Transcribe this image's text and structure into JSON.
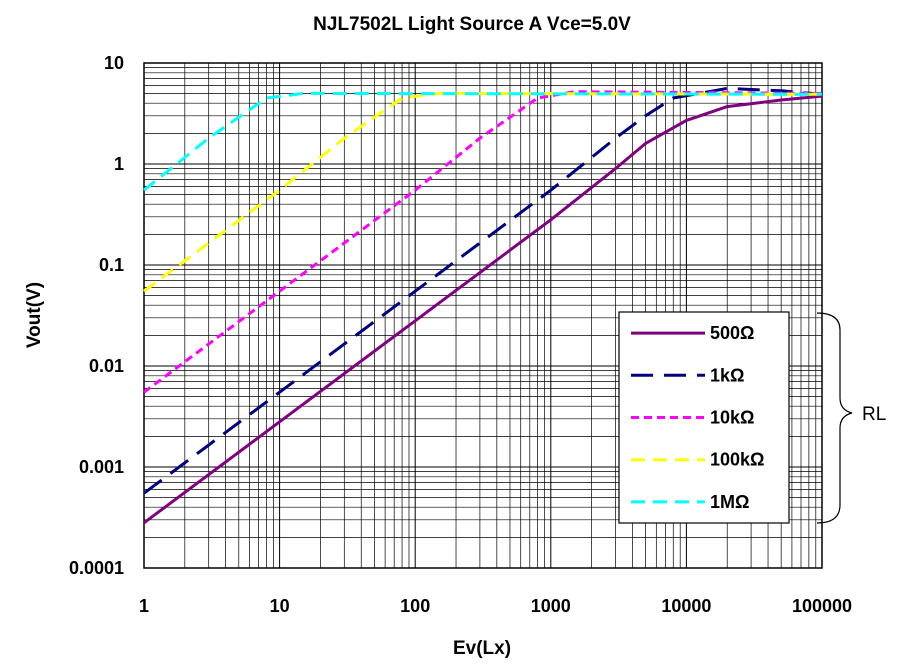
{
  "chart_data": {
    "type": "line",
    "title": "NJL7502L Light Source A Vce=5.0V",
    "xlabel": "Ev(Lx)",
    "ylabel": "Vout(V)",
    "x_scale": "log",
    "y_scale": "log",
    "xlim": [
      1,
      100000
    ],
    "ylim": [
      0.0001,
      10
    ],
    "x_ticks": [
      "1",
      "10",
      "100",
      "1000",
      "10000",
      "100000"
    ],
    "y_ticks": [
      "10",
      "1",
      "0.1",
      "0.01",
      "0.001",
      "0.0001"
    ],
    "grid": true,
    "legend_position": "bottom-right",
    "legend_group_label": "RL",
    "series": [
      {
        "name": "500Ω",
        "color": "#800080",
        "dash": "solid",
        "x": [
          1,
          10,
          100,
          1000,
          3000,
          5000,
          10000,
          20000,
          50000,
          100000
        ],
        "y": [
          0.00028,
          0.0028,
          0.028,
          0.28,
          0.9,
          1.6,
          2.7,
          3.7,
          4.3,
          4.7
        ]
      },
      {
        "name": "1kΩ",
        "color": "#000080",
        "dash": "long",
        "x": [
          1,
          10,
          100,
          1000,
          3000,
          5000,
          8000,
          20000,
          50000,
          100000
        ],
        "y": [
          0.00055,
          0.0055,
          0.055,
          0.55,
          1.8,
          3.0,
          4.5,
          5.6,
          5.3,
          4.9
        ]
      },
      {
        "name": "10kΩ",
        "color": "#ff00ff",
        "dash": "short",
        "x": [
          1,
          10,
          100,
          300,
          800,
          1500,
          100000
        ],
        "y": [
          0.0055,
          0.055,
          0.55,
          1.8,
          4.5,
          5.2,
          5.0
        ]
      },
      {
        "name": "100kΩ",
        "color": "#ffff00",
        "dash": "medium",
        "x": [
          1,
          10,
          30,
          80,
          150,
          100000
        ],
        "y": [
          0.055,
          0.55,
          1.8,
          4.5,
          5.0,
          4.9
        ]
      },
      {
        "name": "1MΩ",
        "color": "#00ffff",
        "dash": "medium",
        "x": [
          1,
          3,
          8,
          15,
          100000
        ],
        "y": [
          0.55,
          1.8,
          4.5,
          5.0,
          4.9
        ]
      }
    ]
  }
}
